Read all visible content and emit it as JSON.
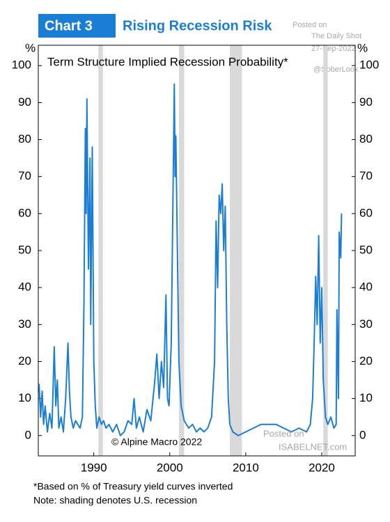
{
  "chart_data": {
    "type": "line",
    "label": "Chart 3",
    "title": "Rising Recession Risk",
    "subtitle": "Term Structure Implied Recession Probability*",
    "y_unit": "%",
    "source": "© Alpine Macro 2022",
    "footnotes": [
      "*Based on % of Treasury yield curves inverted",
      "Note: shading denotes U.S. recession"
    ],
    "watermarks": [
      "Posted on",
      "The Daily Shot",
      "27-Sep-2022",
      "@SoberLook",
      "Posted on",
      "ISABELNET.com"
    ],
    "xlim": [
      1982.7,
      2024.4
    ],
    "xticks": [
      1990,
      2000,
      2010,
      2020
    ],
    "ylim": [
      -5.5,
      105.5
    ],
    "yticks": [
      0,
      10,
      20,
      30,
      40,
      50,
      60,
      70,
      80,
      90,
      100
    ],
    "recession_color": "#d9d9d9",
    "recessions": [
      [
        1990.6,
        1991.2
      ],
      [
        2001.2,
        2001.9
      ],
      [
        2007.9,
        2009.5
      ],
      [
        2020.2,
        2020.8
      ]
    ],
    "x": [
      1982.8,
      1983.0,
      1983.2,
      1983.4,
      1983.6,
      1983.9,
      1984.2,
      1984.5,
      1984.8,
      1985.0,
      1985.2,
      1985.4,
      1985.7,
      1986.0,
      1986.3,
      1986.6,
      1986.8,
      1987.0,
      1987.3,
      1987.6,
      1987.9,
      1988.2,
      1988.5,
      1988.7,
      1988.9,
      1989.0,
      1989.1,
      1989.3,
      1989.5,
      1989.6,
      1989.8,
      1990.0,
      1990.2,
      1990.4,
      1990.7,
      1991.0,
      1991.3,
      1991.6,
      1992.0,
      1992.5,
      1993.0,
      1993.5,
      1994.0,
      1994.5,
      1995.0,
      1995.3,
      1995.6,
      1996.0,
      1996.5,
      1997.0,
      1997.5,
      1998.0,
      1998.3,
      1998.6,
      1998.9,
      1999.2,
      1999.5,
      1999.7,
      1999.9,
      2000.2,
      2000.4,
      2000.6,
      2000.7,
      2000.8,
      2001.0,
      2001.2,
      2001.5,
      2001.9,
      2002.5,
      2003.0,
      2003.5,
      2004.0,
      2004.5,
      2005.0,
      2005.5,
      2005.9,
      2006.1,
      2006.3,
      2006.5,
      2006.7,
      2006.9,
      2007.1,
      2007.3,
      2007.5,
      2007.7,
      2007.9,
      2008.3,
      2009.0,
      2010.0,
      2011.0,
      2012.0,
      2013.0,
      2014.0,
      2015.0,
      2016.0,
      2017.0,
      2018.0,
      2018.5,
      2018.8,
      2019.0,
      2019.2,
      2019.4,
      2019.6,
      2019.8,
      2020.0,
      2020.2,
      2020.5,
      2020.8,
      2021.2,
      2021.6,
      2021.9,
      2022.0,
      2022.2,
      2022.3,
      2022.5,
      2022.6
    ],
    "series": [
      {
        "color": "#1a7fd4",
        "values": [
          14,
          5,
          12,
          3,
          8,
          1,
          6,
          2,
          24,
          8,
          15,
          2,
          5,
          1,
          10,
          25,
          12,
          5,
          2,
          4,
          3,
          2,
          5,
          35,
          83,
          60,
          91,
          45,
          75,
          30,
          78,
          20,
          8,
          2,
          5,
          3,
          4,
          2,
          3,
          1,
          3,
          0,
          1,
          4,
          3,
          10,
          2,
          5,
          1,
          7,
          4,
          14,
          22,
          10,
          20,
          13,
          38,
          10,
          8,
          25,
          60,
          95,
          70,
          81,
          50,
          20,
          8,
          4,
          2,
          3,
          1,
          2,
          1,
          2,
          5,
          20,
          58,
          40,
          65,
          60,
          68,
          50,
          62,
          30,
          10,
          3,
          1,
          0,
          1,
          2,
          3,
          3,
          3,
          2,
          1,
          2,
          1,
          3,
          10,
          25,
          43,
          30,
          54,
          25,
          40,
          15,
          5,
          3,
          5,
          2,
          3,
          34,
          10,
          55,
          48,
          60
        ]
      }
    ]
  }
}
